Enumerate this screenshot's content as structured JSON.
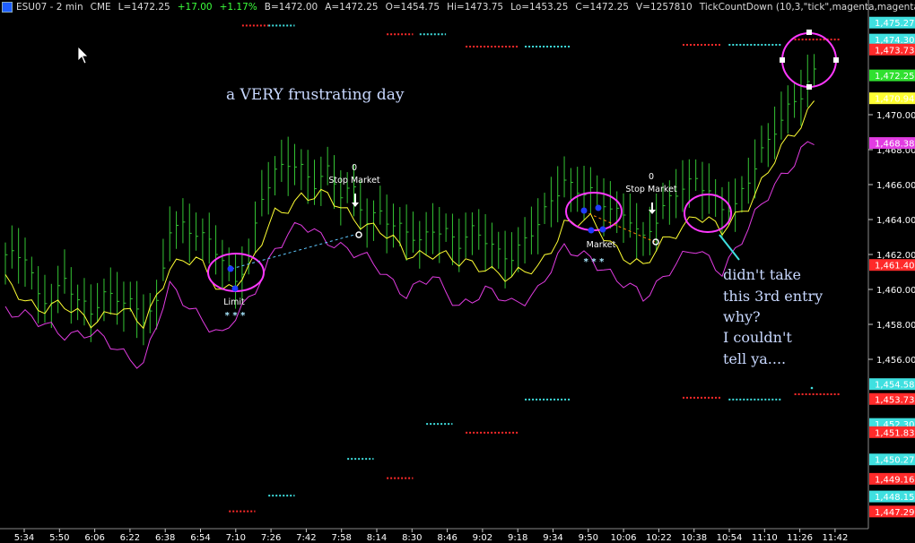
{
  "header": {
    "symbol": "ESU07 - 2 min",
    "exchange": "CME",
    "last": "L=1472.25",
    "change": "+17.00",
    "change_pct": "+1.17%",
    "bid": "B=1472.00",
    "ask": "A=1472.25",
    "open": "O=1454.75",
    "high": "Hi=1473.75",
    "low": "Lo=1453.25",
    "close": "C=1472.25",
    "volume": "V=1257810",
    "indicator": "TickCountDown  (10,3,\"tick\",magenta,magenta)"
  },
  "colors": {
    "background": "#000000",
    "bars": "#34c434",
    "yellow_line": "#ffff33",
    "magenta_line": "#e23ce2",
    "red_dots": "#ff2a2a",
    "cyan_dots": "#3fe0e0",
    "entry_dot": "#1f3cff",
    "circle": "#ff38ff",
    "note_text": "#c8d8ff"
  },
  "annotations": {
    "title_note": "a VERY frustrating day",
    "side_note": [
      "didn't take",
      "this 3rd entry",
      "why?",
      "I couldn't",
      "tell ya...."
    ],
    "orders": [
      {
        "label": "Limit",
        "stars": "* * *"
      },
      {
        "label": "0",
        "sub": "Stop Market"
      },
      {
        "label": "Market",
        "stars": "* * *"
      },
      {
        "label": "0",
        "sub": "Stop Market"
      }
    ]
  },
  "chart_data": {
    "type": "bar",
    "title": "ESU07 - 2 min",
    "x_ticks": [
      "5:34",
      "5:50",
      "6:06",
      "6:22",
      "6:38",
      "6:54",
      "7:10",
      "7:26",
      "7:42",
      "7:58",
      "8:14",
      "8:30",
      "8:46",
      "9:02",
      "9:18",
      "9:34",
      "9:50",
      "10:06",
      "10:22",
      "10:38",
      "10:54",
      "11:10",
      "11:26",
      "11:42"
    ],
    "y_ticks": [
      1456.0,
      1458.0,
      1460.0,
      1462.0,
      1464.0,
      1466.0,
      1468.0,
      1470.0
    ],
    "y_tick_labels": [
      "1,456.00",
      "1,458.00",
      "1,460.00",
      "1,462.00",
      "1,464.00",
      "1,466.00",
      "1,468.00",
      "1,470.00"
    ],
    "ylim": [
      1447.0,
      1475.8
    ],
    "price_labels": [
      {
        "label": "1,475.27",
        "value": 1475.27,
        "color": "#3fe0e0"
      },
      {
        "label": "1,474.30",
        "value": 1474.3,
        "color": "#3fe0e0"
      },
      {
        "label": "1,473.73",
        "value": 1473.73,
        "color": "#ff2a2a"
      },
      {
        "label": "1,472.25",
        "value": 1472.25,
        "color": "#30e030"
      },
      {
        "label": "1,470.94",
        "value": 1470.94,
        "color": "#ffff33"
      },
      {
        "label": "1,468.38",
        "value": 1468.38,
        "color": "#e23ce2"
      },
      {
        "label": "1,461.40",
        "value": 1461.4,
        "color": "#ff2a2a"
      },
      {
        "label": "1,454.58",
        "value": 1454.58,
        "color": "#3fe0e0"
      },
      {
        "label": "1,453.73",
        "value": 1453.73,
        "color": "#ff2a2a"
      },
      {
        "label": "1,452.30",
        "value": 1452.3,
        "color": "#3fe0e0"
      },
      {
        "label": "1,451.83",
        "value": 1451.83,
        "color": "#ff2a2a"
      },
      {
        "label": "1,450.27",
        "value": 1450.27,
        "color": "#3fe0e0"
      },
      {
        "label": "1,449.16",
        "value": 1449.16,
        "color": "#ff2a2a"
      },
      {
        "label": "1,448.15",
        "value": 1448.15,
        "color": "#3fe0e0"
      },
      {
        "label": "1,447.29",
        "value": 1447.29,
        "color": "#ff2a2a"
      }
    ],
    "price_path": [
      [
        0,
        1461.8
      ],
      [
        3,
        1461.8
      ],
      [
        5,
        1459.7
      ],
      [
        7,
        1459.5
      ],
      [
        9,
        1460.6
      ],
      [
        11,
        1459.2
      ],
      [
        13,
        1458.6
      ],
      [
        15,
        1459.8
      ],
      [
        17,
        1459.7
      ],
      [
        19,
        1459.2
      ],
      [
        21,
        1458.2
      ],
      [
        23,
        1459.0
      ],
      [
        25,
        1463.6
      ],
      [
        27,
        1463.8
      ],
      [
        29,
        1463.2
      ],
      [
        31,
        1462.6
      ],
      [
        33,
        1461.6
      ],
      [
        35,
        1460.6
      ],
      [
        37,
        1462.0
      ],
      [
        39,
        1465.3
      ],
      [
        41,
        1466.5
      ],
      [
        43,
        1467.2
      ],
      [
        45,
        1467.0
      ],
      [
        47,
        1466.2
      ],
      [
        49,
        1466.8
      ],
      [
        51,
        1465.3
      ],
      [
        53,
        1465.6
      ],
      [
        55,
        1464.0
      ],
      [
        57,
        1464.6
      ],
      [
        59,
        1463.6
      ],
      [
        61,
        1463.2
      ],
      [
        63,
        1462.6
      ],
      [
        65,
        1463.6
      ],
      [
        67,
        1463.4
      ],
      [
        69,
        1462.6
      ],
      [
        71,
        1463.2
      ],
      [
        73,
        1462.8
      ],
      [
        75,
        1462.2
      ],
      [
        77,
        1462.0
      ],
      [
        79,
        1462.8
      ],
      [
        81,
        1463.6
      ],
      [
        83,
        1465.0
      ],
      [
        85,
        1466.3
      ],
      [
        87,
        1465.8
      ],
      [
        89,
        1465.6
      ],
      [
        91,
        1464.8
      ],
      [
        93,
        1464.3
      ],
      [
        95,
        1464.2
      ],
      [
        97,
        1463.0
      ],
      [
        99,
        1464.0
      ],
      [
        101,
        1465.0
      ],
      [
        103,
        1465.8
      ],
      [
        105,
        1466.4
      ],
      [
        107,
        1465.8
      ],
      [
        109,
        1464.6
      ],
      [
        111,
        1464.6
      ],
      [
        113,
        1466.2
      ],
      [
        115,
        1468.0
      ],
      [
        117,
        1469.3
      ],
      [
        119,
        1470.3
      ],
      [
        121,
        1471.0
      ],
      [
        123,
        1472.3
      ]
    ],
    "yellow_path": [
      [
        0,
        1460.4
      ],
      [
        5,
        1459.0
      ],
      [
        9,
        1458.9
      ],
      [
        13,
        1458.3
      ],
      [
        17,
        1458.8
      ],
      [
        21,
        1458.0
      ],
      [
        25,
        1461.4
      ],
      [
        29,
        1461.6
      ],
      [
        33,
        1460.0
      ],
      [
        37,
        1461.0
      ],
      [
        41,
        1464.3
      ],
      [
        45,
        1465.4
      ],
      [
        49,
        1465.2
      ],
      [
        53,
        1464.2
      ],
      [
        57,
        1463.3
      ],
      [
        61,
        1462.0
      ],
      [
        65,
        1462.2
      ],
      [
        69,
        1461.4
      ],
      [
        73,
        1461.4
      ],
      [
        77,
        1460.6
      ],
      [
        81,
        1461.2
      ],
      [
        85,
        1463.8
      ],
      [
        89,
        1463.8
      ],
      [
        93,
        1462.4
      ],
      [
        97,
        1461.2
      ],
      [
        101,
        1463.0
      ],
      [
        105,
        1464.4
      ],
      [
        109,
        1463.2
      ],
      [
        113,
        1465.0
      ],
      [
        117,
        1467.4
      ],
      [
        121,
        1469.4
      ],
      [
        123,
        1470.9
      ]
    ],
    "magenta_path": [
      [
        0,
        1459.0
      ],
      [
        5,
        1458.0
      ],
      [
        9,
        1457.6
      ],
      [
        13,
        1457.4
      ],
      [
        17,
        1456.6
      ],
      [
        21,
        1455.8
      ],
      [
        25,
        1460.0
      ],
      [
        29,
        1458.8
      ],
      [
        33,
        1457.2
      ],
      [
        37,
        1459.4
      ],
      [
        41,
        1462.4
      ],
      [
        45,
        1463.6
      ],
      [
        49,
        1463.0
      ],
      [
        53,
        1462.0
      ],
      [
        57,
        1461.2
      ],
      [
        61,
        1459.8
      ],
      [
        65,
        1460.6
      ],
      [
        69,
        1459.2
      ],
      [
        73,
        1459.8
      ],
      [
        77,
        1459.2
      ],
      [
        81,
        1460.0
      ],
      [
        85,
        1462.2
      ],
      [
        89,
        1462.0
      ],
      [
        93,
        1460.4
      ],
      [
        97,
        1459.6
      ],
      [
        101,
        1461.2
      ],
      [
        105,
        1462.2
      ],
      [
        109,
        1461.2
      ],
      [
        113,
        1463.4
      ],
      [
        117,
        1466.0
      ],
      [
        121,
        1468.0
      ],
      [
        123,
        1468.4
      ]
    ],
    "red_levels": [
      {
        "from": 36,
        "to": 40,
        "value": 1475.1
      },
      {
        "from": 58,
        "to": 62,
        "value": 1474.6
      },
      {
        "from": 70,
        "to": 78,
        "value": 1473.9
      },
      {
        "from": 103,
        "to": 109,
        "value": 1474.0
      },
      {
        "from": 120,
        "to": 127,
        "value": 1474.3
      },
      {
        "from": 34,
        "to": 38,
        "value": 1447.3
      },
      {
        "from": 58,
        "to": 62,
        "value": 1449.2
      },
      {
        "from": 70,
        "to": 78,
        "value": 1451.8
      },
      {
        "from": 103,
        "to": 109,
        "value": 1453.8
      },
      {
        "from": 120,
        "to": 127,
        "value": 1454.0
      }
    ],
    "cyan_levels": [
      {
        "from": 40,
        "to": 44,
        "value": 1475.1
      },
      {
        "from": 63,
        "to": 67,
        "value": 1474.6
      },
      {
        "from": 79,
        "to": 86,
        "value": 1473.9
      },
      {
        "from": 110,
        "to": 118,
        "value": 1474.0
      },
      {
        "from": 40,
        "to": 44,
        "value": 1448.2
      },
      {
        "from": 52,
        "to": 56,
        "value": 1450.3
      },
      {
        "from": 64,
        "to": 68,
        "value": 1452.3
      },
      {
        "from": 79,
        "to": 86,
        "value": 1453.7
      },
      {
        "from": 110,
        "to": 118,
        "value": 1453.7
      }
    ]
  }
}
